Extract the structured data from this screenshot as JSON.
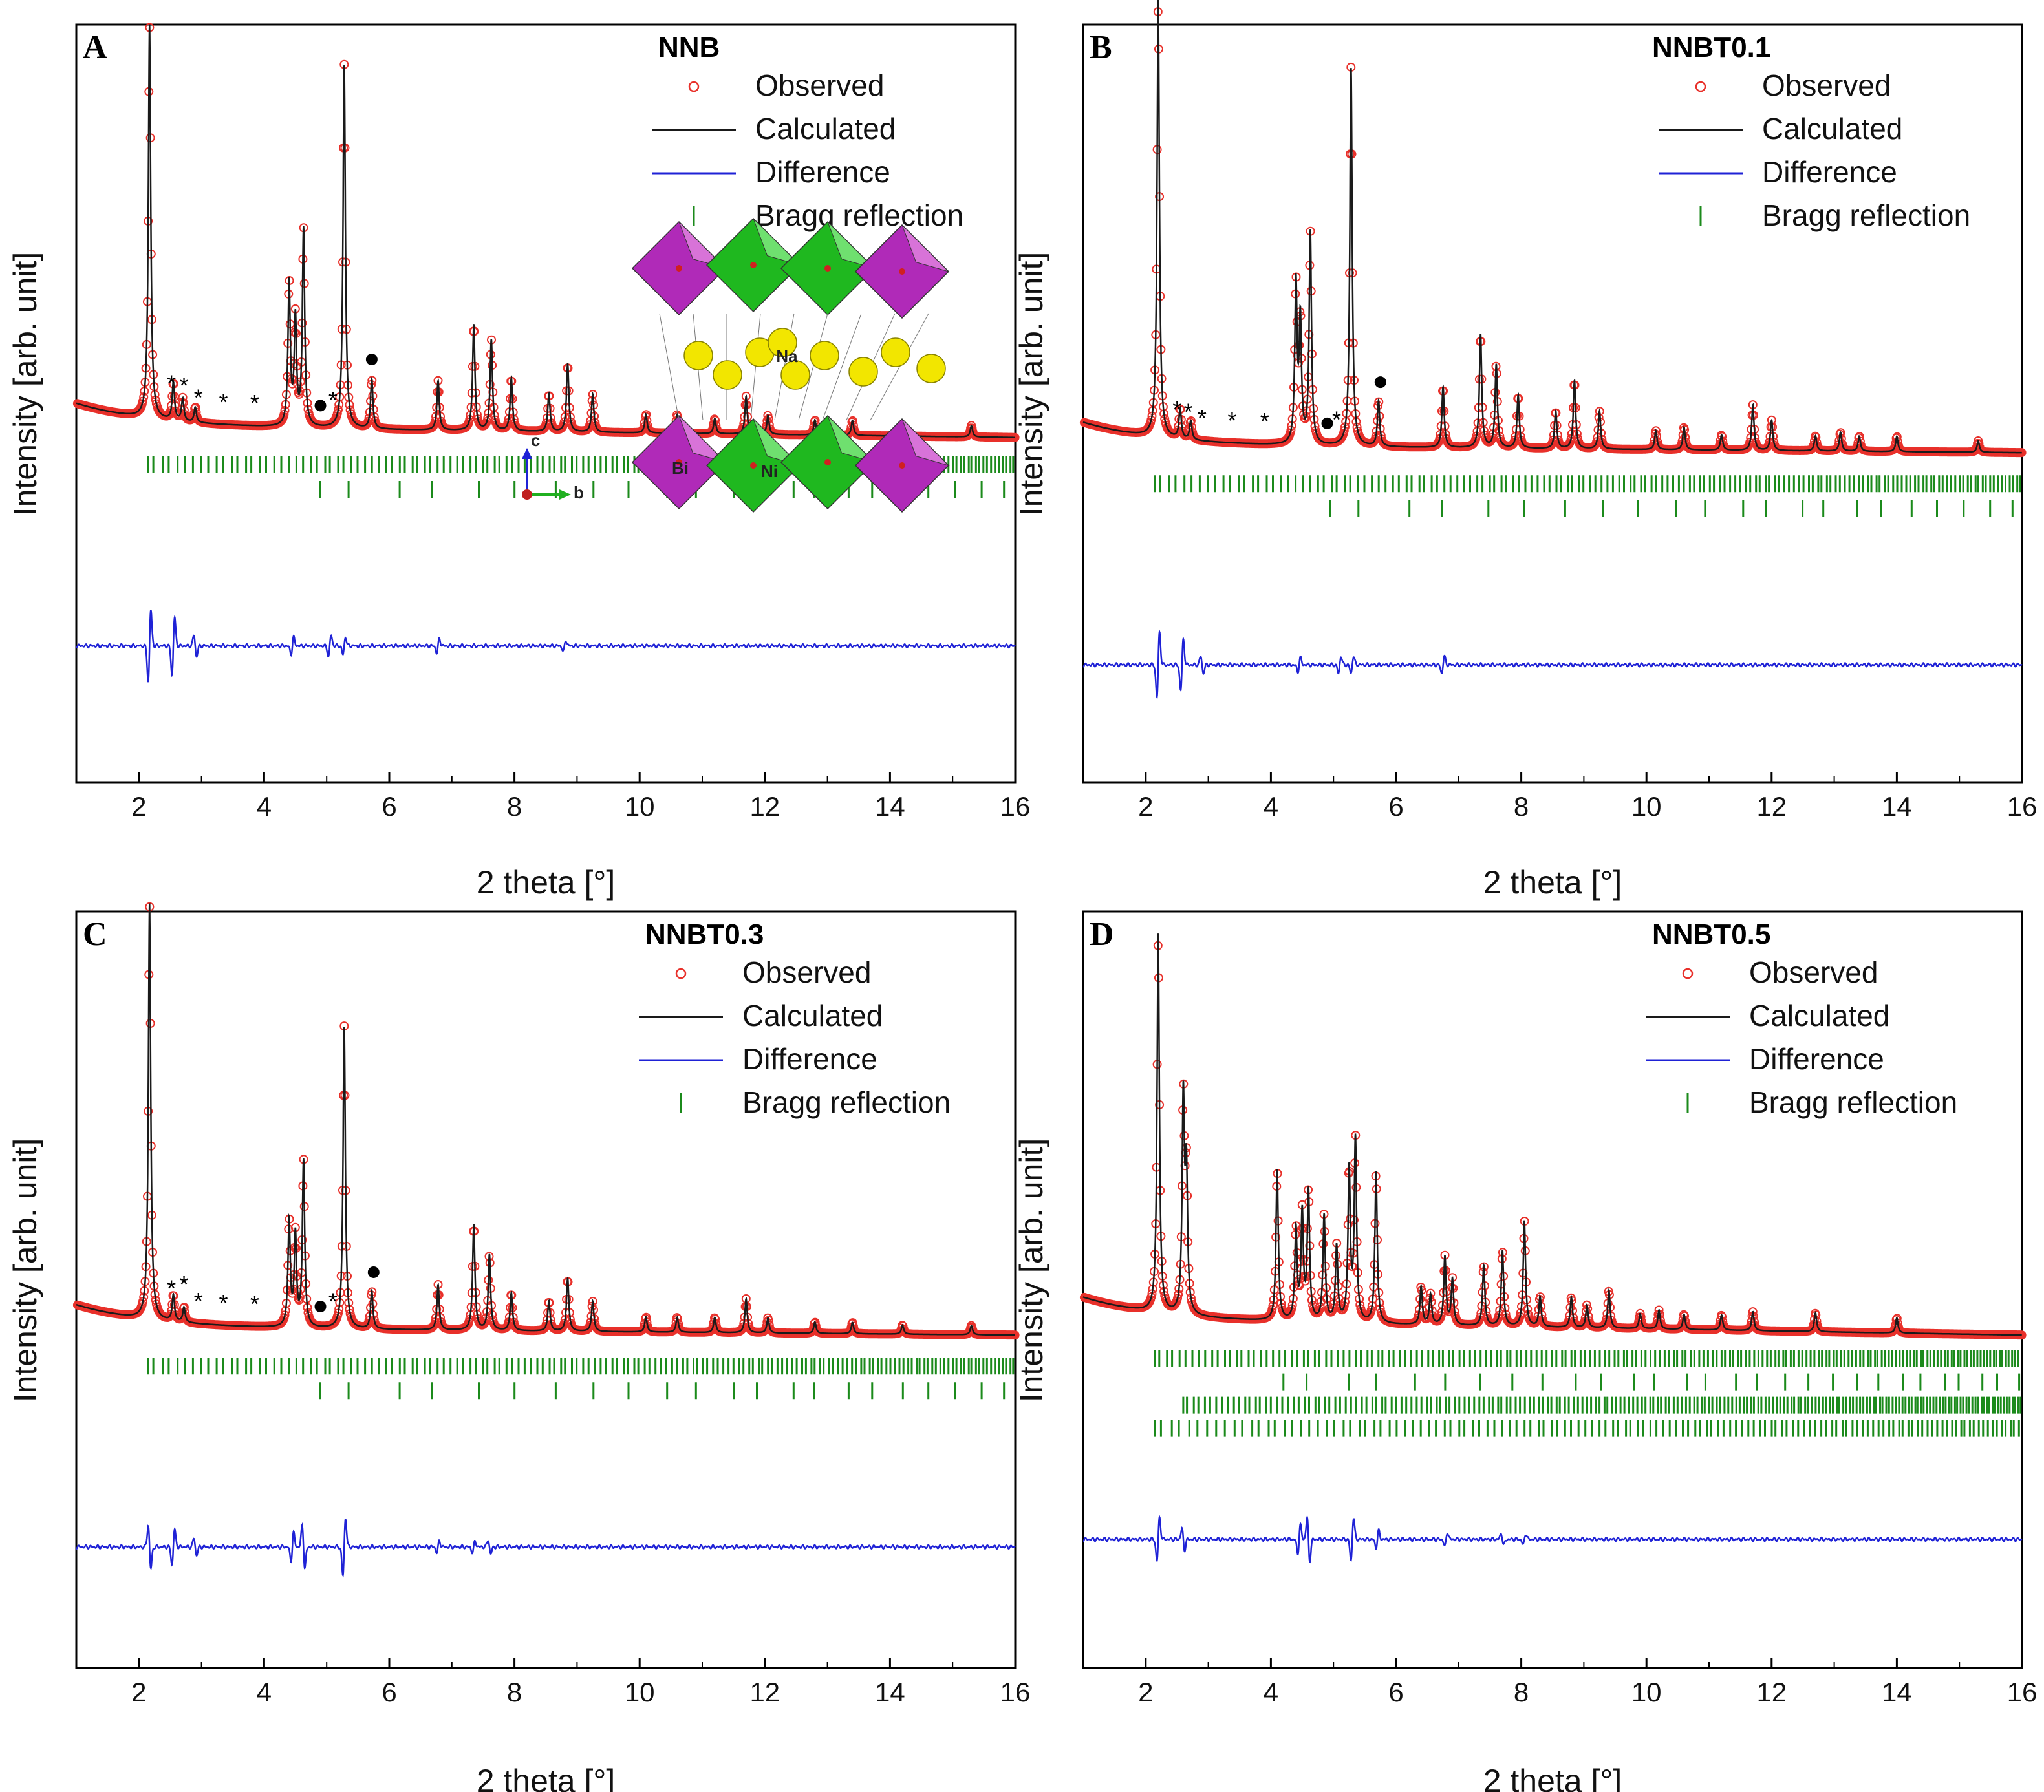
{
  "figure": {
    "background": "#ffffff"
  },
  "colors": {
    "observed": "#e8302a",
    "calculated": "#1a1a1a",
    "difference": "#1f22d6",
    "bragg": "#1b8a1b",
    "frame": "#000000"
  },
  "chart_data": [
    {
      "id": "A",
      "type": "line",
      "panel_label": "A",
      "title": "NNB",
      "xlabel": "2 theta [°]",
      "ylabel": "Intensity [arb. unit]",
      "xlim": [
        1,
        16
      ],
      "ylim": [
        0,
        1
      ],
      "xticks": [
        2,
        4,
        6,
        8,
        10,
        12,
        14,
        16
      ],
      "xtick_labels": [
        "2",
        "4",
        "6",
        "8",
        "10",
        "12",
        "14",
        "16"
      ],
      "legend": [
        {
          "key": "observed",
          "label": "Observed",
          "style": "circle"
        },
        {
          "key": "calculated",
          "label": "Calculated",
          "style": "line"
        },
        {
          "key": "difference",
          "label": "Difference",
          "style": "line"
        },
        {
          "key": "bragg",
          "label": "Bragg reflection",
          "style": "tick"
        }
      ],
      "background": {
        "start": 0.47,
        "end": 0.455
      },
      "peaks": [
        {
          "x": 2.17,
          "h": 0.52
        },
        {
          "x": 2.55,
          "h": 0.05
        },
        {
          "x": 2.7,
          "h": 0.03
        },
        {
          "x": 2.9,
          "h": 0.02
        },
        {
          "x": 4.4,
          "h": 0.19
        },
        {
          "x": 4.5,
          "h": 0.14
        },
        {
          "x": 4.63,
          "h": 0.26
        },
        {
          "x": 5.28,
          "h": 0.48
        },
        {
          "x": 5.72,
          "h": 0.065
        },
        {
          "x": 6.78,
          "h": 0.065
        },
        {
          "x": 7.35,
          "h": 0.14
        },
        {
          "x": 7.63,
          "h": 0.12
        },
        {
          "x": 7.95,
          "h": 0.07
        },
        {
          "x": 8.55,
          "h": 0.05
        },
        {
          "x": 8.85,
          "h": 0.09
        },
        {
          "x": 9.25,
          "h": 0.05
        },
        {
          "x": 10.1,
          "h": 0.025
        },
        {
          "x": 10.6,
          "h": 0.025
        },
        {
          "x": 11.2,
          "h": 0.02
        },
        {
          "x": 11.7,
          "h": 0.05
        },
        {
          "x": 12.05,
          "h": 0.025
        },
        {
          "x": 12.8,
          "h": 0.02
        },
        {
          "x": 13.4,
          "h": 0.02
        },
        {
          "x": 14.2,
          "h": 0.015
        },
        {
          "x": 15.3,
          "h": 0.015
        }
      ],
      "bragg_rows": [
        {
          "start": 2.15,
          "spacing": 0.12
        },
        {
          "start": 4.9,
          "spacing": 0.75
        }
      ],
      "difference_features": [
        {
          "x": 2.17,
          "a": 0.05
        },
        {
          "x": 2.55,
          "a": 0.04
        },
        {
          "x": 2.9,
          "a": -0.015
        },
        {
          "x": 4.45,
          "a": 0.012
        },
        {
          "x": 5.05,
          "a": 0.015
        },
        {
          "x": 5.28,
          "a": 0.012
        },
        {
          "x": 6.78,
          "a": 0.01
        },
        {
          "x": 8.8,
          "a": 0.008
        }
      ],
      "star_markers": [
        2.52,
        2.72,
        2.95,
        3.35,
        3.85,
        5.1
      ],
      "dot_markers": [
        4.9,
        5.72
      ],
      "marker_labels": {
        "star": "*",
        "dot": "●"
      },
      "inset": {
        "atoms": [
          "Na",
          "Bi",
          "Ni"
        ],
        "axes": [
          "c",
          "b"
        ]
      }
    },
    {
      "id": "B",
      "type": "line",
      "panel_label": "B",
      "title": "NNBT0.1",
      "xlabel": "2 theta [°]",
      "ylabel": "Intensity [arb. unit]",
      "xlim": [
        1,
        16
      ],
      "ylim": [
        0,
        1
      ],
      "xticks": [
        2,
        4,
        6,
        8,
        10,
        12,
        14,
        16
      ],
      "xtick_labels": [
        "2",
        "4",
        "6",
        "8",
        "10",
        "12",
        "14",
        "16"
      ],
      "legend": [
        {
          "key": "observed",
          "label": "Observed",
          "style": "circle"
        },
        {
          "key": "calculated",
          "label": "Calculated",
          "style": "line"
        },
        {
          "key": "difference",
          "label": "Difference",
          "style": "line"
        },
        {
          "key": "bragg",
          "label": "Bragg reflection",
          "style": "tick"
        }
      ],
      "background": {
        "start": 0.445,
        "end": 0.435
      },
      "peaks": [
        {
          "x": 2.2,
          "h": 0.58
        },
        {
          "x": 2.55,
          "h": 0.04
        },
        {
          "x": 2.72,
          "h": 0.025
        },
        {
          "x": 4.4,
          "h": 0.21
        },
        {
          "x": 4.47,
          "h": 0.16
        },
        {
          "x": 4.63,
          "h": 0.28
        },
        {
          "x": 5.28,
          "h": 0.5
        },
        {
          "x": 5.72,
          "h": 0.06
        },
        {
          "x": 6.75,
          "h": 0.08
        },
        {
          "x": 7.35,
          "h": 0.15
        },
        {
          "x": 7.6,
          "h": 0.11
        },
        {
          "x": 7.95,
          "h": 0.07
        },
        {
          "x": 8.55,
          "h": 0.05
        },
        {
          "x": 8.85,
          "h": 0.09
        },
        {
          "x": 9.25,
          "h": 0.05
        },
        {
          "x": 10.15,
          "h": 0.025
        },
        {
          "x": 10.6,
          "h": 0.03
        },
        {
          "x": 11.2,
          "h": 0.02
        },
        {
          "x": 11.7,
          "h": 0.06
        },
        {
          "x": 12.0,
          "h": 0.04
        },
        {
          "x": 12.7,
          "h": 0.02
        },
        {
          "x": 13.1,
          "h": 0.025
        },
        {
          "x": 13.4,
          "h": 0.02
        },
        {
          "x": 14.0,
          "h": 0.02
        },
        {
          "x": 15.3,
          "h": 0.015
        }
      ],
      "bragg_rows": [
        {
          "start": 2.15,
          "spacing": 0.12
        },
        {
          "start": 4.95,
          "spacing": 0.75
        }
      ],
      "difference_features": [
        {
          "x": 2.2,
          "a": 0.045
        },
        {
          "x": 2.58,
          "a": 0.035
        },
        {
          "x": 2.9,
          "a": -0.012
        },
        {
          "x": 4.45,
          "a": 0.01
        },
        {
          "x": 5.1,
          "a": 0.012
        },
        {
          "x": 5.3,
          "a": 0.012
        },
        {
          "x": 6.75,
          "a": 0.012
        }
      ],
      "star_markers": [
        2.5,
        2.68,
        2.9,
        3.38,
        3.9,
        5.05
      ],
      "dot_markers": [
        4.9,
        5.75
      ],
      "marker_labels": {
        "star": "*",
        "dot": "●"
      }
    },
    {
      "id": "C",
      "type": "line",
      "panel_label": "C",
      "title": "NNBT0.3",
      "xlabel": "2 theta [°]",
      "ylabel": "Intensity [arb. unit]",
      "xlim": [
        1,
        16
      ],
      "ylim": [
        0,
        1
      ],
      "xticks": [
        2,
        4,
        6,
        8,
        10,
        12,
        14,
        16
      ],
      "xtick_labels": [
        "2",
        "4",
        "6",
        "8",
        "10",
        "12",
        "14",
        "16"
      ],
      "legend": [
        {
          "key": "observed",
          "label": "Observed",
          "style": "circle"
        },
        {
          "key": "calculated",
          "label": "Calculated",
          "style": "line"
        },
        {
          "key": "difference",
          "label": "Difference",
          "style": "line"
        },
        {
          "key": "bragg",
          "label": "Bragg reflection",
          "style": "tick"
        }
      ],
      "background": {
        "start": 0.45,
        "end": 0.44
      },
      "peaks": [
        {
          "x": 2.17,
          "h": 0.55
        },
        {
          "x": 2.55,
          "h": 0.035
        },
        {
          "x": 2.72,
          "h": 0.02
        },
        {
          "x": 4.4,
          "h": 0.14
        },
        {
          "x": 4.5,
          "h": 0.12
        },
        {
          "x": 4.63,
          "h": 0.22
        },
        {
          "x": 5.28,
          "h": 0.4
        },
        {
          "x": 5.72,
          "h": 0.05
        },
        {
          "x": 6.78,
          "h": 0.06
        },
        {
          "x": 7.35,
          "h": 0.14
        },
        {
          "x": 7.6,
          "h": 0.1
        },
        {
          "x": 7.95,
          "h": 0.05
        },
        {
          "x": 8.55,
          "h": 0.04
        },
        {
          "x": 8.85,
          "h": 0.07
        },
        {
          "x": 9.25,
          "h": 0.04
        },
        {
          "x": 10.1,
          "h": 0.02
        },
        {
          "x": 10.6,
          "h": 0.02
        },
        {
          "x": 11.2,
          "h": 0.02
        },
        {
          "x": 11.7,
          "h": 0.045
        },
        {
          "x": 12.05,
          "h": 0.02
        },
        {
          "x": 12.8,
          "h": 0.015
        },
        {
          "x": 13.4,
          "h": 0.015
        },
        {
          "x": 14.2,
          "h": 0.012
        },
        {
          "x": 15.3,
          "h": 0.012
        }
      ],
      "bragg_rows": [
        {
          "start": 2.15,
          "spacing": 0.12
        },
        {
          "start": 4.9,
          "spacing": 0.75
        }
      ],
      "difference_features": [
        {
          "x": 2.17,
          "a": -0.03
        },
        {
          "x": 2.55,
          "a": 0.025
        },
        {
          "x": 2.9,
          "a": -0.012
        },
        {
          "x": 4.45,
          "a": 0.02
        },
        {
          "x": 4.63,
          "a": -0.03
        },
        {
          "x": 5.28,
          "a": 0.04
        },
        {
          "x": 6.78,
          "a": 0.008
        },
        {
          "x": 7.35,
          "a": 0.008
        },
        {
          "x": 7.6,
          "a": -0.01
        }
      ],
      "star_markers": [
        2.52,
        2.72,
        2.95,
        3.35,
        3.85,
        5.1
      ],
      "dot_markers": [
        4.9,
        5.75
      ],
      "marker_labels": {
        "star": "*",
        "dot": "●"
      }
    },
    {
      "id": "D",
      "type": "line",
      "panel_label": "D",
      "title": "NNBT0.5",
      "xlabel": "2 theta [°]",
      "ylabel": "Intensity [arb. unit]",
      "xlim": [
        1,
        16
      ],
      "ylim": [
        0,
        1
      ],
      "xticks": [
        2,
        4,
        6,
        8,
        10,
        12,
        14,
        16
      ],
      "xtick_labels": [
        "2",
        "4",
        "6",
        "8",
        "10",
        "12",
        "14",
        "16"
      ],
      "legend": [
        {
          "key": "observed",
          "label": "Observed",
          "style": "circle"
        },
        {
          "key": "calculated",
          "label": "Calculated",
          "style": "line"
        },
        {
          "key": "difference",
          "label": "Difference",
          "style": "line"
        },
        {
          "key": "bragg",
          "label": "Bragg reflection",
          "style": "tick"
        }
      ],
      "background": {
        "start": 0.46,
        "end": 0.44
      },
      "peaks": [
        {
          "x": 2.2,
          "h": 0.5
        },
        {
          "x": 2.6,
          "h": 0.28
        },
        {
          "x": 2.65,
          "h": 0.18
        },
        {
          "x": 4.1,
          "h": 0.2
        },
        {
          "x": 4.4,
          "h": 0.12
        },
        {
          "x": 4.5,
          "h": 0.14
        },
        {
          "x": 4.6,
          "h": 0.17
        },
        {
          "x": 4.85,
          "h": 0.14
        },
        {
          "x": 5.05,
          "h": 0.1
        },
        {
          "x": 5.25,
          "h": 0.2
        },
        {
          "x": 5.35,
          "h": 0.24
        },
        {
          "x": 5.68,
          "h": 0.2
        },
        {
          "x": 6.4,
          "h": 0.05
        },
        {
          "x": 6.55,
          "h": 0.04
        },
        {
          "x": 6.78,
          "h": 0.09
        },
        {
          "x": 6.9,
          "h": 0.06
        },
        {
          "x": 7.4,
          "h": 0.08
        },
        {
          "x": 7.7,
          "h": 0.1
        },
        {
          "x": 8.05,
          "h": 0.14
        },
        {
          "x": 8.3,
          "h": 0.04
        },
        {
          "x": 8.8,
          "h": 0.04
        },
        {
          "x": 9.05,
          "h": 0.03
        },
        {
          "x": 9.4,
          "h": 0.05
        },
        {
          "x": 9.9,
          "h": 0.02
        },
        {
          "x": 10.2,
          "h": 0.025
        },
        {
          "x": 10.6,
          "h": 0.02
        },
        {
          "x": 11.2,
          "h": 0.02
        },
        {
          "x": 11.7,
          "h": 0.025
        },
        {
          "x": 12.7,
          "h": 0.025
        },
        {
          "x": 14.0,
          "h": 0.02
        }
      ],
      "bragg_rows": [
        {
          "start": 2.15,
          "spacing": 0.1
        },
        {
          "start": 4.2,
          "spacing": 0.6
        },
        {
          "start": 2.6,
          "spacing": 0.09
        },
        {
          "start": 2.15,
          "spacing": 0.14
        }
      ],
      "difference_features": [
        {
          "x": 2.2,
          "a": 0.03
        },
        {
          "x": 2.6,
          "a": -0.015
        },
        {
          "x": 4.45,
          "a": 0.02
        },
        {
          "x": 4.6,
          "a": -0.03
        },
        {
          "x": 5.3,
          "a": 0.03
        },
        {
          "x": 5.7,
          "a": 0.012
        },
        {
          "x": 6.8,
          "a": 0.01
        },
        {
          "x": 7.7,
          "a": -0.008
        },
        {
          "x": 8.05,
          "a": 0.008
        }
      ],
      "star_markers": [],
      "dot_markers": [],
      "marker_labels": {
        "star": "*",
        "dot": "●"
      }
    }
  ]
}
